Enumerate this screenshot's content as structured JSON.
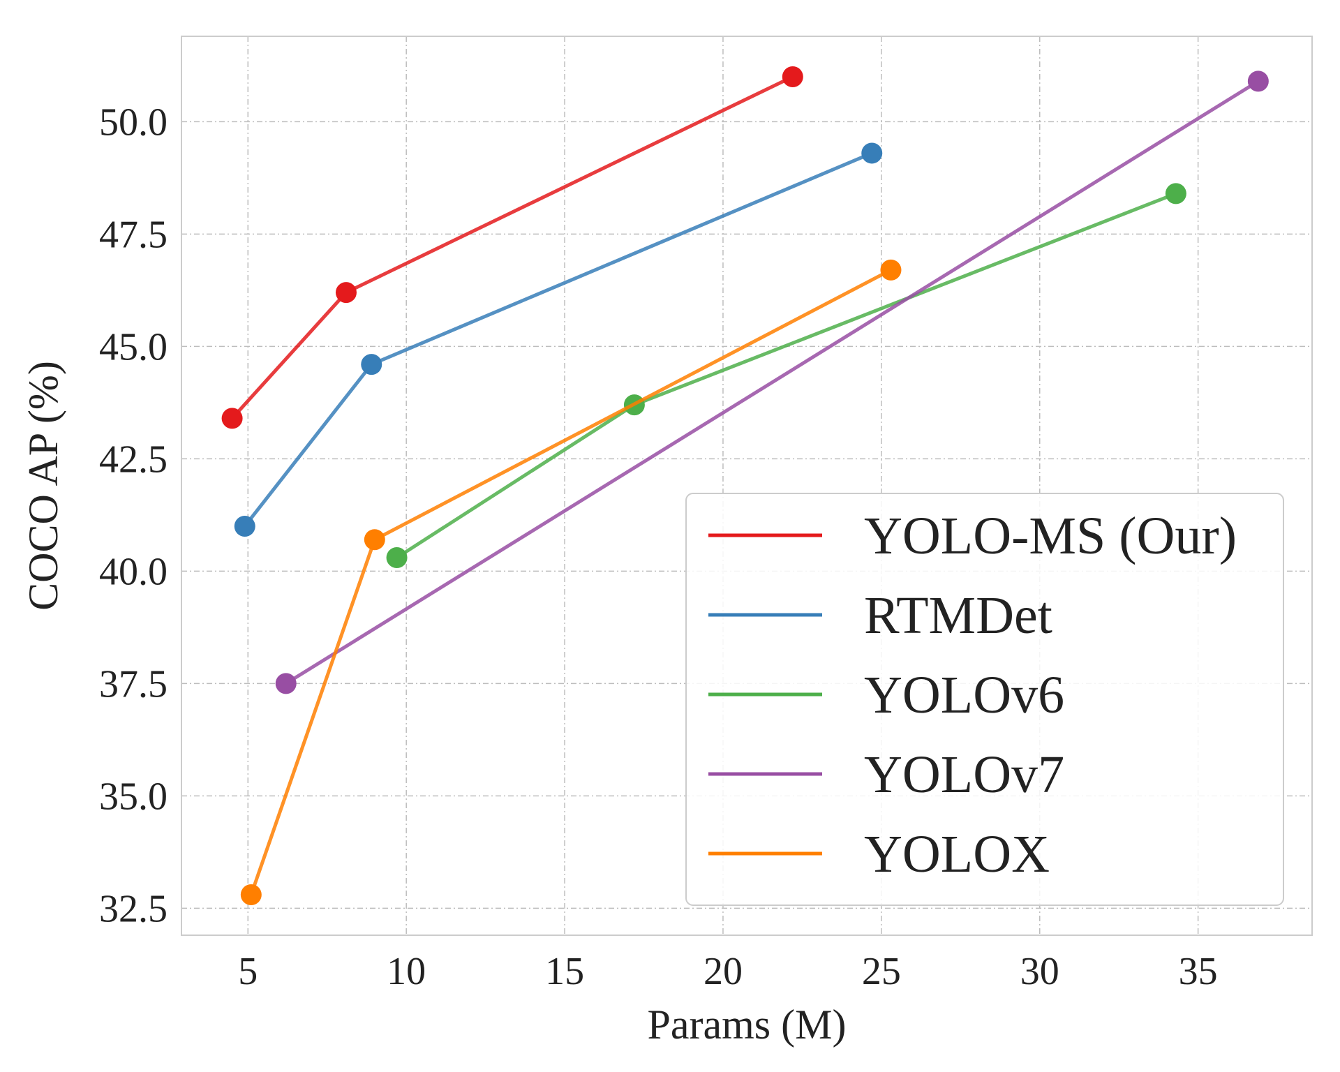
{
  "chart_data": {
    "type": "line",
    "title": "",
    "xlabel": "Params (M)",
    "ylabel": "COCO AP (%)",
    "xlim": [
      2.9,
      38.6
    ],
    "ylim": [
      31.9,
      51.9
    ],
    "xticks": [
      5,
      10,
      15,
      20,
      25,
      30,
      35
    ],
    "xtick_labels": [
      "5",
      "10",
      "15",
      "20",
      "25",
      "30",
      "35"
    ],
    "yticks": [
      32.5,
      35.0,
      37.5,
      40.0,
      42.5,
      45.0,
      47.5,
      50.0
    ],
    "ytick_labels": [
      "32.5",
      "35.0",
      "37.5",
      "40.0",
      "42.5",
      "45.0",
      "47.5",
      "50.0"
    ],
    "grid": true,
    "legend_position": "lower-right",
    "series": [
      {
        "name": "YOLO-MS (Our)",
        "color": "#e41a1c",
        "x": [
          4.5,
          8.1,
          22.2
        ],
        "y": [
          43.4,
          46.2,
          51.0
        ]
      },
      {
        "name": "RTMDet",
        "color": "#377eb8",
        "x": [
          4.9,
          8.9,
          24.7
        ],
        "y": [
          41.0,
          44.6,
          49.3
        ]
      },
      {
        "name": "YOLOv6",
        "color": "#4daf4a",
        "x": [
          9.7,
          17.2,
          34.3
        ],
        "y": [
          40.3,
          43.7,
          48.4
        ]
      },
      {
        "name": "YOLOv7",
        "color": "#984ea3",
        "x": [
          6.2,
          36.9
        ],
        "y": [
          37.5,
          50.9
        ]
      },
      {
        "name": "YOLOX",
        "color": "#ff7f00",
        "x": [
          5.1,
          9.0,
          25.3
        ],
        "y": [
          32.8,
          40.7,
          46.7
        ]
      }
    ]
  }
}
